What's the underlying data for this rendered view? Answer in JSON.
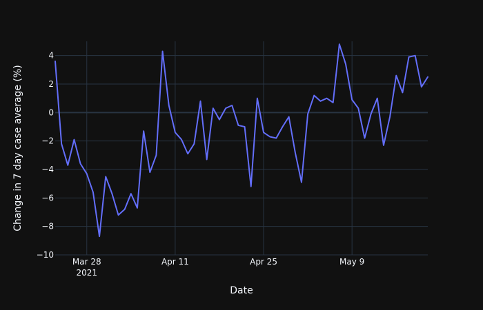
{
  "chart_data": {
    "type": "line",
    "xlabel": "Date",
    "ylabel": "Change in 7 day case average (%)",
    "xlim": [
      "2021-03-23",
      "2021-05-21"
    ],
    "ylim": [
      -10,
      5
    ],
    "x_ticks": [
      {
        "date": "2021-03-28",
        "label": "Mar 28",
        "sublabel": "2021"
      },
      {
        "date": "2021-04-11",
        "label": "Apr 11"
      },
      {
        "date": "2021-04-25",
        "label": "Apr 25"
      },
      {
        "date": "2021-05-09",
        "label": "May 9"
      }
    ],
    "y_ticks": [
      {
        "value": 4,
        "label": "4"
      },
      {
        "value": 2,
        "label": "2"
      },
      {
        "value": 0,
        "label": "0"
      },
      {
        "value": -2,
        "label": "−2"
      },
      {
        "value": -4,
        "label": "−4"
      },
      {
        "value": -6,
        "label": "−6"
      },
      {
        "value": -8,
        "label": "−8"
      },
      {
        "value": -10,
        "label": "−10"
      }
    ],
    "grid": true,
    "series": [
      {
        "color": "#636efa",
        "x": [
          "2021-03-23",
          "2021-03-24",
          "2021-03-25",
          "2021-03-26",
          "2021-03-27",
          "2021-03-28",
          "2021-03-29",
          "2021-03-30",
          "2021-03-31",
          "2021-04-01",
          "2021-04-02",
          "2021-04-03",
          "2021-04-04",
          "2021-04-05",
          "2021-04-06",
          "2021-04-07",
          "2021-04-08",
          "2021-04-09",
          "2021-04-10",
          "2021-04-11",
          "2021-04-12",
          "2021-04-13",
          "2021-04-14",
          "2021-04-15",
          "2021-04-16",
          "2021-04-17",
          "2021-04-18",
          "2021-04-19",
          "2021-04-20",
          "2021-04-21",
          "2021-04-22",
          "2021-04-23",
          "2021-04-24",
          "2021-04-25",
          "2021-04-26",
          "2021-04-27",
          "2021-04-28",
          "2021-04-29",
          "2021-04-30",
          "2021-05-01",
          "2021-05-02",
          "2021-05-03",
          "2021-05-04",
          "2021-05-05",
          "2021-05-06",
          "2021-05-07",
          "2021-05-08",
          "2021-05-09",
          "2021-05-10",
          "2021-05-11",
          "2021-05-12",
          "2021-05-13",
          "2021-05-14",
          "2021-05-15",
          "2021-05-16",
          "2021-05-17",
          "2021-05-18",
          "2021-05-19",
          "2021-05-20",
          "2021-05-21"
        ],
        "y": [
          3.6,
          -2.2,
          -3.7,
          -1.9,
          -3.6,
          -4.3,
          -5.6,
          -8.7,
          -4.5,
          -5.7,
          -7.2,
          -6.8,
          -5.7,
          -6.7,
          -1.3,
          -4.2,
          -3.0,
          4.3,
          0.5,
          -1.4,
          -1.9,
          -2.9,
          -2.2,
          0.8,
          -3.3,
          0.3,
          -0.5,
          0.3,
          0.5,
          -0.9,
          -1.0,
          -5.2,
          1.0,
          -1.4,
          -1.7,
          -1.8,
          -1.0,
          -0.3,
          -2.8,
          -4.9,
          -0.1,
          1.2,
          0.8,
          1.0,
          0.7,
          4.8,
          3.4,
          0.9,
          0.3,
          -1.8,
          -0.1,
          1.0,
          -2.3,
          -0.3,
          2.6,
          1.4,
          3.9,
          4.0,
          1.8,
          2.5
        ]
      }
    ]
  }
}
